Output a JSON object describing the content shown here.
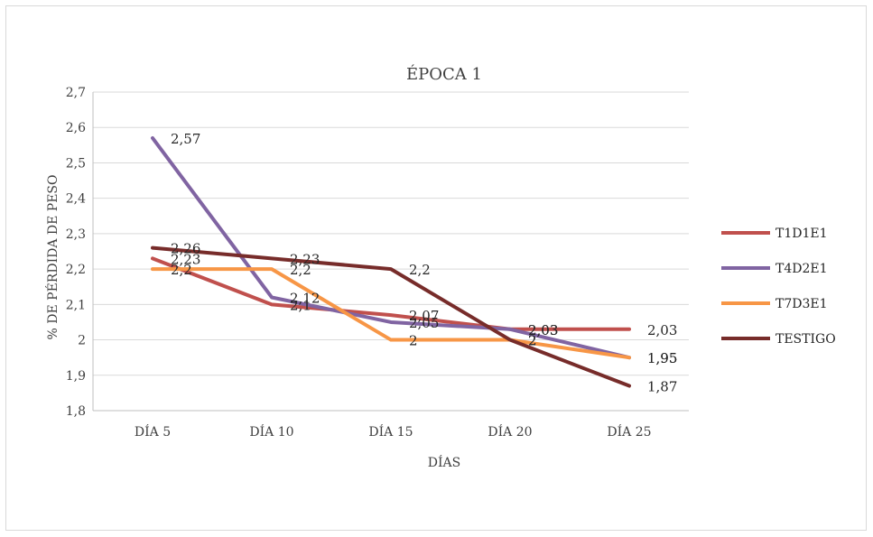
{
  "chart_data": {
    "type": "line",
    "title": "ÉPOCA 1",
    "xlabel": "DÍAS",
    "ylabel": "% DE PÉRDIDA DE PESO",
    "categories": [
      "DÍA 5",
      "DÍA 10",
      "DÍA 15",
      "DÍA 20",
      "DÍA 25"
    ],
    "ylim": [
      1.8,
      2.7
    ],
    "yticks": [
      "1,8",
      "1,9",
      "2",
      "2,1",
      "2,2",
      "2,3",
      "2,4",
      "2,5",
      "2,6",
      "2,7"
    ],
    "grid": true,
    "legend": "right",
    "series": [
      {
        "name": "T1D1E1",
        "color": "#c0504d",
        "values": [
          2.23,
          2.1,
          2.07,
          2.03,
          2.03
        ],
        "labels": [
          "2,23",
          "2,1",
          "2,07",
          "2,03",
          "2,03"
        ]
      },
      {
        "name": "T4D2E1",
        "color": "#8064a2",
        "values": [
          2.57,
          2.12,
          2.05,
          2.03,
          1.95
        ],
        "labels": [
          "2,57",
          "2,12",
          "2,05",
          "2,03",
          "1,95"
        ]
      },
      {
        "name": "T7D3E1",
        "color": "#f79646",
        "values": [
          2.2,
          2.2,
          2.0,
          2.0,
          1.95
        ],
        "labels": [
          "2,2",
          "2,2",
          "2",
          "2",
          "1,95"
        ]
      },
      {
        "name": "TESTIGO",
        "color": "#772c2a",
        "values": [
          2.26,
          2.23,
          2.2,
          2.0,
          1.87
        ],
        "labels": [
          "2,26",
          "2,23",
          "2,2",
          "2",
          "1,87"
        ]
      }
    ]
  }
}
